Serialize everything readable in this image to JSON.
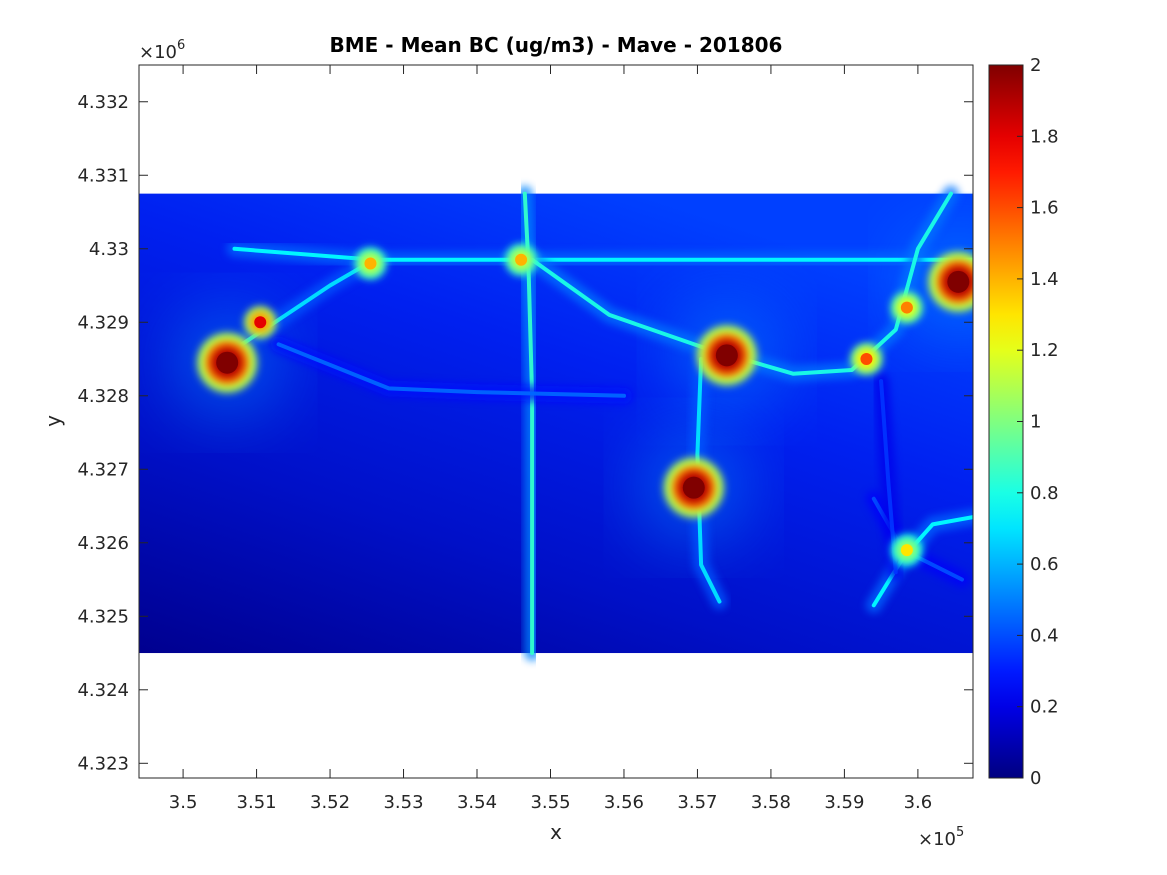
{
  "chart_data": {
    "type": "heatmap",
    "title": "BME - Mean BC (ug/m3) -  Mave - 201806",
    "xlabel": "x",
    "ylabel": "y",
    "x_exponent_base": "×10",
    "x_exponent_power": "5",
    "y_exponent_base": "×10",
    "y_exponent_power": "6",
    "xlim": [
      349400,
      360750
    ],
    "ylim": [
      4322800,
      4332500
    ],
    "x_ticks": [
      350000,
      351000,
      352000,
      353000,
      354000,
      355000,
      356000,
      357000,
      358000,
      359000,
      360000
    ],
    "x_tick_labels": [
      "3.5",
      "3.51",
      "3.52",
      "3.53",
      "3.54",
      "3.55",
      "3.56",
      "3.57",
      "3.58",
      "3.59",
      "3.6"
    ],
    "y_ticks": [
      4323000,
      4324000,
      4325000,
      4326000,
      4327000,
      4328000,
      4329000,
      4330000,
      4331000,
      4332000
    ],
    "y_tick_labels": [
      "4.323",
      "4.324",
      "4.325",
      "4.326",
      "4.327",
      "4.328",
      "4.329",
      "4.33",
      "4.331",
      "4.332"
    ],
    "data_extent": {
      "x": [
        349400,
        360750
      ],
      "y": [
        4324500,
        4330750
      ]
    },
    "colorbar": {
      "range": [
        0,
        2
      ],
      "ticks": [
        0,
        0.2,
        0.4,
        0.6,
        0.8,
        1,
        1.2,
        1.4,
        1.6,
        1.8,
        2
      ],
      "tick_labels": [
        "0",
        "0.2",
        "0.4",
        "0.6",
        "0.8",
        "1",
        "1.2",
        "1.4",
        "1.6",
        "1.8",
        "2"
      ],
      "colormap": "jet"
    },
    "grid": false,
    "hotspots": [
      {
        "x": 357400,
        "y": 4328550,
        "value": 2.0
      },
      {
        "x": 356950,
        "y": 4326750,
        "value": 2.0
      },
      {
        "x": 350600,
        "y": 4328450,
        "value": 2.0
      },
      {
        "x": 360550,
        "y": 4329550,
        "value": 2.0
      },
      {
        "x": 351050,
        "y": 4329000,
        "value": 1.8
      },
      {
        "x": 359850,
        "y": 4329200,
        "value": 1.5
      },
      {
        "x": 359300,
        "y": 4328500,
        "value": 1.6
      },
      {
        "x": 354600,
        "y": 4329850,
        "value": 1.4
      },
      {
        "x": 352550,
        "y": 4329800,
        "value": 1.4
      },
      {
        "x": 359850,
        "y": 4325900,
        "value": 1.3
      }
    ],
    "roads": [
      {
        "points": [
          [
            350700,
            4330000
          ],
          [
            352600,
            4329850
          ],
          [
            354650,
            4329850
          ],
          [
            360750,
            4329850
          ]
        ],
        "value": 0.75
      },
      {
        "points": [
          [
            354650,
            4330750
          ],
          [
            354700,
            4329800
          ],
          [
            354750,
            4328000
          ],
          [
            354750,
            4324500
          ]
        ],
        "value": 0.85
      },
      {
        "points": [
          [
            354750,
            4329850
          ],
          [
            355800,
            4329100
          ],
          [
            357100,
            4328650
          ],
          [
            358300,
            4328300
          ],
          [
            359100,
            4328350
          ],
          [
            359700,
            4328900
          ],
          [
            360000,
            4330000
          ],
          [
            360450,
            4330750
          ]
        ],
        "value": 0.8
      },
      {
        "points": [
          [
            350800,
            4328700
          ],
          [
            352000,
            4329500
          ],
          [
            352600,
            4329850
          ]
        ],
        "value": 0.7
      },
      {
        "points": [
          [
            351300,
            4328700
          ],
          [
            352800,
            4328100
          ],
          [
            354000,
            4328050
          ],
          [
            356000,
            4328000
          ]
        ],
        "value": 0.45
      },
      {
        "points": [
          [
            357050,
            4328500
          ],
          [
            357000,
            4327200
          ],
          [
            357050,
            4325700
          ],
          [
            357300,
            4325200
          ]
        ],
        "value": 0.7
      },
      {
        "points": [
          [
            359400,
            4325150
          ],
          [
            359800,
            4325800
          ],
          [
            360200,
            4326250
          ],
          [
            360750,
            4326350
          ]
        ],
        "value": 0.75
      },
      {
        "points": [
          [
            359400,
            4326600
          ],
          [
            359800,
            4325900
          ],
          [
            360600,
            4325500
          ]
        ],
        "value": 0.4
      },
      {
        "points": [
          [
            359500,
            4328200
          ],
          [
            359600,
            4326800
          ],
          [
            359700,
            4325600
          ]
        ],
        "value": 0.35
      }
    ]
  }
}
